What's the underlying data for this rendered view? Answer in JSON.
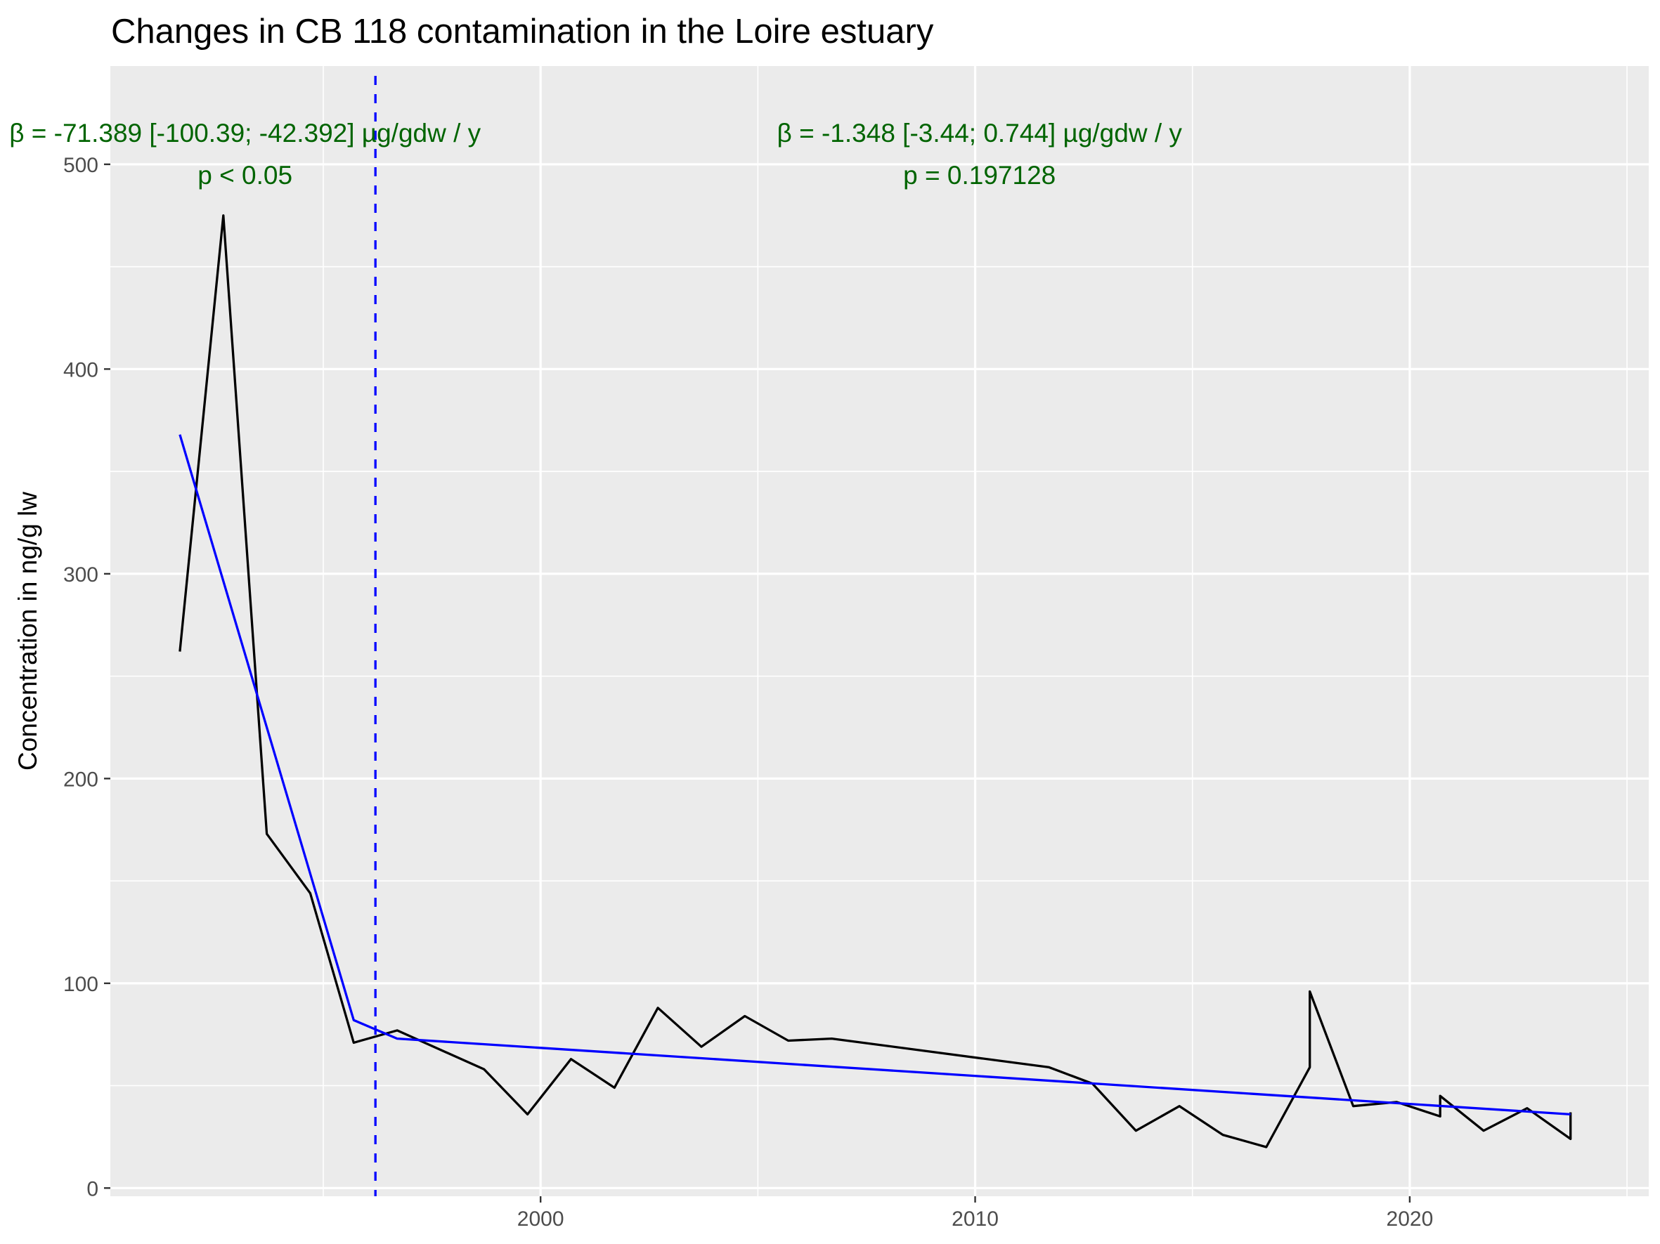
{
  "chart_data": {
    "type": "line",
    "title": "Changes in CB 118 contamination in the Loire estuary",
    "xlabel": "",
    "ylabel": "Concentration in ng/g lw",
    "xlim": [
      1990.1,
      2025.5
    ],
    "ylim": [
      -4,
      548
    ],
    "x_ticks": [
      2000,
      2010,
      2020
    ],
    "x_ticks_minor": [
      1995,
      2005,
      2015,
      2025
    ],
    "y_ticks": [
      0,
      100,
      200,
      300,
      400,
      500
    ],
    "y_ticks_minor": [
      50,
      150,
      250,
      350,
      450
    ],
    "grid": true,
    "background": "#ebebeb",
    "series": [
      {
        "color": "#000000",
        "x": [
          1991.7,
          1992.7,
          1993.7,
          1994.7,
          1995.7,
          1996.7,
          1998.7,
          1999.7,
          2000.7,
          2001.7,
          2002.7,
          2003.7,
          2004.7,
          2005.7,
          2006.7,
          2011.7,
          2012.7,
          2013.7,
          2014.7,
          2015.7,
          2016.7,
          2017.7,
          2017.7,
          2018.7,
          2019.7,
          2020.7,
          2020.7,
          2021.7,
          2022.7,
          2023.7,
          2023.7
        ],
        "y": [
          262,
          475,
          173,
          144,
          71,
          77,
          58,
          36,
          63,
          49,
          88,
          69,
          84,
          72,
          73,
          59,
          51,
          28,
          40,
          26,
          20,
          59,
          96,
          40,
          42,
          35,
          45,
          28,
          39,
          24,
          37
        ]
      }
    ],
    "trend_lines": [
      {
        "color": "#0000ff",
        "x": [
          1991.7,
          1995.7,
          1996.7,
          2023.7
        ],
        "y": [
          368,
          82,
          73,
          36
        ]
      }
    ],
    "breakpoint": {
      "x": 1996.2,
      "color": "#0000ff",
      "style": "dashed"
    },
    "annotations": [
      {
        "line1": "β = -71.389 [-100.39; -42.392] µg/gdw / y",
        "line2": "p < 0.05",
        "x": 1993.2,
        "color": "#006400"
      },
      {
        "line1": "β = -1.348 [-3.44; 0.744] µg/gdw / y",
        "line2": "p = 0.197128",
        "x": 2010.1,
        "color": "#006400"
      }
    ]
  }
}
